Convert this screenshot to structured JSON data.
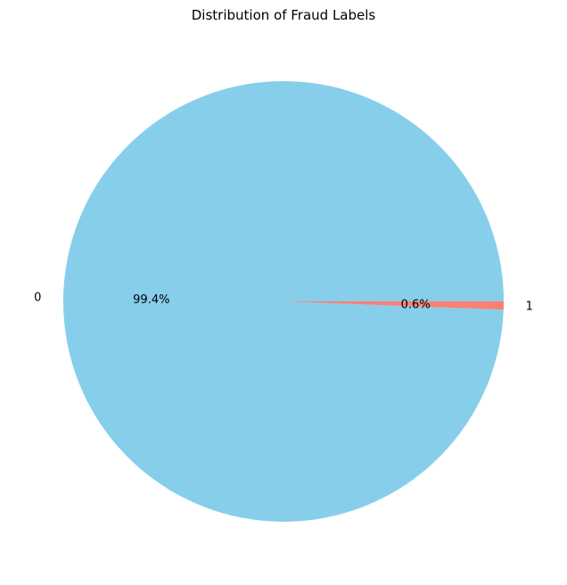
{
  "chart_data": {
    "type": "pie",
    "title": "Distribution of Fraud Labels",
    "slices": [
      {
        "label": "0",
        "value": 99.4,
        "pct_label": "99.4%",
        "color": "#87ceeb"
      },
      {
        "label": "1",
        "value": 0.6,
        "pct_label": "0.6%",
        "color": "#fa8072"
      }
    ],
    "start_angle": 0,
    "counterclockwise": true
  }
}
